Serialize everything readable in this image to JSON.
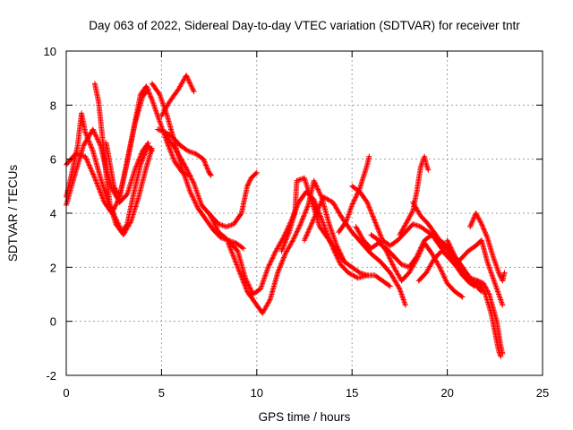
{
  "chart_data": {
    "type": "scatter",
    "title": "Day 063 of 2022, Sidereal Day-to-day VTEC variation (SDTVAR) for receiver tntr",
    "xlabel": "GPS time / hours",
    "ylabel": "SDTVAR / TECUs",
    "xlim": [
      0,
      25
    ],
    "ylim": [
      -2,
      10
    ],
    "xticks": [
      0,
      5,
      10,
      15,
      20,
      25
    ],
    "yticks": [
      -2,
      0,
      2,
      4,
      6,
      8,
      10
    ],
    "grid": true,
    "legend": "none",
    "marker": "+",
    "color": "#ff0000",
    "series": [
      {
        "name": "track-1",
        "points": [
          [
            0.0,
            4.6
          ],
          [
            0.3,
            5.5
          ],
          [
            0.6,
            6.5
          ],
          [
            0.8,
            7.7
          ],
          [
            1.0,
            7.0
          ],
          [
            1.4,
            6.3
          ],
          [
            1.8,
            5.3
          ],
          [
            2.2,
            4.4
          ],
          [
            2.6,
            3.8
          ],
          [
            3.0,
            3.2
          ],
          [
            3.4,
            3.7
          ],
          [
            3.8,
            4.6
          ],
          [
            4.2,
            5.7
          ],
          [
            4.5,
            6.4
          ]
        ]
      },
      {
        "name": "track-2",
        "points": [
          [
            0.0,
            4.3
          ],
          [
            0.4,
            5.3
          ],
          [
            0.9,
            6.5
          ],
          [
            1.4,
            7.1
          ],
          [
            1.8,
            6.5
          ],
          [
            2.1,
            5.6
          ],
          [
            2.4,
            4.9
          ],
          [
            2.8,
            4.4
          ],
          [
            3.2,
            4.7
          ],
          [
            3.6,
            5.6
          ],
          [
            4.0,
            6.3
          ],
          [
            4.3,
            6.6
          ]
        ]
      },
      {
        "name": "track-3",
        "points": [
          [
            0.0,
            5.8
          ],
          [
            0.5,
            6.2
          ],
          [
            1.0,
            6.1
          ],
          [
            1.5,
            5.3
          ],
          [
            2.0,
            4.4
          ],
          [
            2.4,
            4.0
          ],
          [
            2.8,
            4.6
          ],
          [
            3.2,
            5.9
          ],
          [
            3.6,
            7.3
          ],
          [
            4.0,
            8.3
          ],
          [
            4.3,
            8.6
          ]
        ]
      },
      {
        "name": "track-4",
        "points": [
          [
            1.5,
            8.8
          ],
          [
            1.7,
            8.1
          ],
          [
            1.9,
            6.8
          ],
          [
            2.1,
            5.4
          ],
          [
            2.3,
            4.3
          ],
          [
            2.6,
            3.6
          ],
          [
            2.9,
            3.3
          ],
          [
            3.2,
            3.6
          ],
          [
            3.5,
            4.6
          ],
          [
            3.9,
            5.8
          ],
          [
            4.3,
            6.5
          ],
          [
            4.5,
            6.3
          ]
        ]
      },
      {
        "name": "track-5",
        "points": [
          [
            2.1,
            6.6
          ],
          [
            2.3,
            5.8
          ],
          [
            2.5,
            5.0
          ],
          [
            2.8,
            4.6
          ],
          [
            3.1,
            5.6
          ],
          [
            3.5,
            7.0
          ],
          [
            3.9,
            8.4
          ],
          [
            4.2,
            8.7
          ],
          [
            4.5,
            8.2
          ],
          [
            4.9,
            7.4
          ],
          [
            5.3,
            6.6
          ],
          [
            5.7,
            5.9
          ],
          [
            6.1,
            5.5
          ],
          [
            6.5,
            5.4
          ]
        ]
      },
      {
        "name": "track-6",
        "points": [
          [
            4.5,
            8.8
          ],
          [
            4.9,
            8.4
          ],
          [
            5.3,
            7.6
          ],
          [
            5.7,
            6.6
          ],
          [
            6.1,
            5.6
          ],
          [
            6.5,
            4.8
          ],
          [
            6.9,
            4.2
          ],
          [
            7.3,
            3.8
          ],
          [
            7.7,
            3.4
          ],
          [
            8.1,
            3.1
          ],
          [
            8.5,
            3.0
          ],
          [
            8.9,
            2.9
          ],
          [
            9.3,
            2.7
          ]
        ]
      },
      {
        "name": "track-7",
        "points": [
          [
            4.8,
            7.1
          ],
          [
            5.2,
            7.0
          ],
          [
            5.6,
            6.8
          ],
          [
            6.0,
            6.5
          ],
          [
            6.4,
            6.3
          ],
          [
            6.8,
            6.2
          ],
          [
            7.2,
            6.0
          ],
          [
            7.5,
            5.5
          ],
          [
            7.6,
            5.4
          ]
        ]
      },
      {
        "name": "track-8",
        "points": [
          [
            5.0,
            7.6
          ],
          [
            5.4,
            8.1
          ],
          [
            5.9,
            8.6
          ],
          [
            6.3,
            9.1
          ],
          [
            6.7,
            8.5
          ]
        ]
      },
      {
        "name": "track-9",
        "points": [
          [
            5.2,
            6.9
          ],
          [
            5.7,
            6.4
          ],
          [
            6.2,
            5.8
          ],
          [
            6.7,
            5.1
          ],
          [
            7.1,
            4.3
          ],
          [
            7.6,
            3.9
          ],
          [
            8.0,
            3.6
          ],
          [
            8.4,
            3.5
          ],
          [
            8.8,
            3.6
          ],
          [
            9.2,
            4.0
          ],
          [
            9.5,
            5.0
          ],
          [
            9.7,
            5.3
          ],
          [
            10.0,
            5.5
          ]
        ]
      },
      {
        "name": "track-10",
        "points": [
          [
            7.5,
            4.0
          ],
          [
            8.0,
            3.3
          ],
          [
            8.5,
            3.0
          ],
          [
            9.0,
            2.6
          ],
          [
            9.4,
            1.6
          ],
          [
            9.8,
            1.0
          ],
          [
            10.2,
            1.2
          ],
          [
            10.6,
            2.0
          ],
          [
            11.0,
            2.6
          ],
          [
            11.4,
            3.1
          ],
          [
            11.8,
            3.7
          ],
          [
            12.2,
            4.4
          ],
          [
            12.6,
            4.8
          ],
          [
            13.0,
            4.5
          ],
          [
            13.5,
            3.6
          ],
          [
            14.0,
            2.7
          ],
          [
            14.4,
            2.1
          ],
          [
            14.8,
            1.8
          ],
          [
            15.3,
            1.6
          ],
          [
            15.8,
            1.7
          ]
        ]
      },
      {
        "name": "track-11",
        "points": [
          [
            8.5,
            2.9
          ],
          [
            9.0,
            2.0
          ],
          [
            9.5,
            1.1
          ],
          [
            9.9,
            0.7
          ],
          [
            10.3,
            0.3
          ],
          [
            10.7,
            0.8
          ],
          [
            11.1,
            1.8
          ],
          [
            11.5,
            2.5
          ],
          [
            11.9,
            3.0
          ],
          [
            12.3,
            3.6
          ],
          [
            12.7,
            4.3
          ],
          [
            13.0,
            5.2
          ],
          [
            13.4,
            4.6
          ],
          [
            13.8,
            3.6
          ],
          [
            14.2,
            2.8
          ],
          [
            14.6,
            2.2
          ]
        ]
      },
      {
        "name": "track-12",
        "points": [
          [
            11.3,
            2.6
          ],
          [
            11.7,
            3.3
          ],
          [
            12.0,
            4.0
          ],
          [
            12.1,
            5.2
          ],
          [
            12.5,
            5.3
          ],
          [
            12.9,
            4.4
          ],
          [
            13.3,
            3.5
          ],
          [
            13.8,
            3.0
          ],
          [
            14.2,
            2.6
          ],
          [
            14.6,
            2.2
          ],
          [
            15.0,
            2.0
          ],
          [
            15.4,
            1.8
          ],
          [
            15.8,
            1.7
          ],
          [
            16.2,
            1.7
          ],
          [
            16.6,
            1.5
          ],
          [
            17.0,
            1.3
          ]
        ]
      },
      {
        "name": "track-13",
        "points": [
          [
            12.5,
            3.0
          ],
          [
            13.0,
            3.8
          ],
          [
            13.5,
            4.6
          ],
          [
            14.0,
            4.4
          ],
          [
            14.5,
            3.8
          ],
          [
            15.0,
            3.3
          ],
          [
            15.5,
            2.9
          ],
          [
            16.0,
            2.5
          ],
          [
            16.5,
            2.2
          ],
          [
            17.0,
            1.8
          ],
          [
            17.5,
            1.2
          ],
          [
            17.8,
            0.6
          ]
        ]
      },
      {
        "name": "track-14",
        "points": [
          [
            14.3,
            3.3
          ],
          [
            14.7,
            3.7
          ],
          [
            15.0,
            4.3
          ],
          [
            15.4,
            4.9
          ],
          [
            15.8,
            5.8
          ],
          [
            15.9,
            6.1
          ]
        ]
      },
      {
        "name": "track-15",
        "points": [
          [
            15.0,
            5.0
          ],
          [
            15.4,
            4.8
          ],
          [
            15.8,
            4.4
          ],
          [
            16.2,
            3.7
          ],
          [
            16.6,
            3.0
          ],
          [
            17.0,
            2.8
          ],
          [
            17.4,
            3.0
          ],
          [
            17.8,
            3.3
          ],
          [
            18.2,
            3.6
          ],
          [
            18.6,
            3.5
          ],
          [
            19.0,
            3.3
          ],
          [
            19.4,
            3.1
          ],
          [
            19.8,
            2.9
          ],
          [
            20.2,
            2.6
          ],
          [
            20.6,
            2.2
          ],
          [
            21.0,
            1.7
          ],
          [
            21.4,
            1.4
          ],
          [
            21.8,
            1.1
          ]
        ]
      },
      {
        "name": "track-16",
        "points": [
          [
            15.2,
            3.5
          ],
          [
            15.6,
            3.0
          ],
          [
            16.0,
            2.7
          ],
          [
            16.4,
            2.9
          ],
          [
            16.8,
            2.7
          ],
          [
            17.2,
            2.4
          ],
          [
            17.6,
            2.1
          ],
          [
            18.0,
            2.0
          ],
          [
            18.4,
            2.4
          ],
          [
            18.8,
            3.0
          ],
          [
            19.2,
            3.2
          ],
          [
            19.6,
            2.8
          ],
          [
            20.0,
            2.4
          ],
          [
            20.4,
            2.1
          ],
          [
            20.8,
            1.7
          ],
          [
            21.2,
            1.4
          ]
        ]
      },
      {
        "name": "track-17",
        "points": [
          [
            16.0,
            3.2
          ],
          [
            16.4,
            3.0
          ],
          [
            16.8,
            2.6
          ],
          [
            17.2,
            2.0
          ],
          [
            17.6,
            1.5
          ],
          [
            18.0,
            1.8
          ],
          [
            18.4,
            2.3
          ],
          [
            18.8,
            2.9
          ],
          [
            19.2,
            2.5
          ],
          [
            19.6,
            2.0
          ],
          [
            20.0,
            1.4
          ],
          [
            20.4,
            1.1
          ],
          [
            20.8,
            0.9
          ]
        ]
      },
      {
        "name": "track-18",
        "points": [
          [
            17.5,
            3.2
          ],
          [
            17.9,
            3.7
          ],
          [
            18.2,
            4.1
          ],
          [
            18.4,
            4.8
          ],
          [
            18.6,
            5.7
          ],
          [
            18.8,
            6.1
          ],
          [
            18.9,
            5.8
          ],
          [
            19.0,
            5.6
          ]
        ]
      },
      {
        "name": "track-19",
        "points": [
          [
            18.2,
            4.4
          ],
          [
            18.6,
            3.9
          ],
          [
            19.0,
            3.6
          ],
          [
            19.4,
            3.2
          ],
          [
            19.8,
            2.8
          ],
          [
            20.2,
            2.5
          ],
          [
            20.6,
            2.1
          ],
          [
            21.0,
            1.6
          ],
          [
            21.4,
            1.3
          ],
          [
            21.6,
            1.5
          ],
          [
            21.9,
            1.4
          ],
          [
            22.2,
            1.0
          ],
          [
            22.4,
            0.5
          ],
          [
            22.6,
            0.0
          ],
          [
            22.8,
            -0.9
          ],
          [
            22.9,
            -1.2
          ]
        ]
      },
      {
        "name": "track-20",
        "points": [
          [
            18.5,
            1.5
          ],
          [
            18.9,
            1.8
          ],
          [
            19.3,
            2.3
          ],
          [
            19.7,
            2.6
          ],
          [
            20.1,
            2.4
          ],
          [
            20.4,
            2.1
          ],
          [
            20.7,
            2.3
          ],
          [
            21.1,
            2.6
          ],
          [
            21.5,
            2.8
          ],
          [
            21.8,
            3.0
          ],
          [
            22.1,
            2.2
          ],
          [
            22.4,
            1.6
          ],
          [
            22.7,
            1.0
          ],
          [
            22.9,
            0.6
          ]
        ]
      },
      {
        "name": "track-21",
        "points": [
          [
            21.2,
            3.5
          ],
          [
            21.5,
            4.0
          ],
          [
            21.8,
            3.6
          ],
          [
            22.1,
            3.1
          ],
          [
            22.4,
            2.4
          ],
          [
            22.7,
            1.8
          ],
          [
            22.9,
            1.5
          ],
          [
            23.0,
            1.8
          ]
        ]
      },
      {
        "name": "track-22",
        "points": [
          [
            20.0,
            3.0
          ],
          [
            20.4,
            2.4
          ],
          [
            20.8,
            2.0
          ],
          [
            21.2,
            1.6
          ],
          [
            21.6,
            1.5
          ],
          [
            22.0,
            1.0
          ],
          [
            22.3,
            0.3
          ],
          [
            22.5,
            -0.4
          ],
          [
            22.7,
            -1.1
          ],
          [
            22.8,
            -1.3
          ]
        ]
      }
    ]
  }
}
